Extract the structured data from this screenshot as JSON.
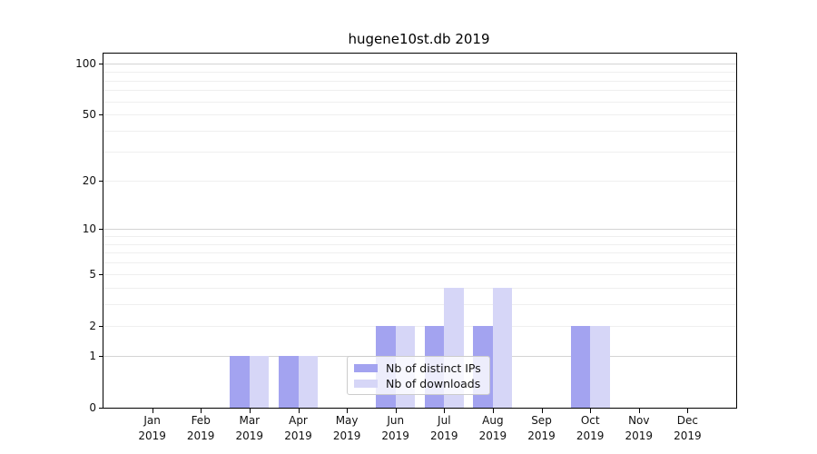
{
  "title": "hugene10st.db 2019",
  "chart_data": {
    "type": "bar",
    "title": "hugene10st.db 2019",
    "categories": [
      {
        "month": "Jan",
        "year": "2019"
      },
      {
        "month": "Feb",
        "year": "2019"
      },
      {
        "month": "Mar",
        "year": "2019"
      },
      {
        "month": "Apr",
        "year": "2019"
      },
      {
        "month": "May",
        "year": "2019"
      },
      {
        "month": "Jun",
        "year": "2019"
      },
      {
        "month": "Jul",
        "year": "2019"
      },
      {
        "month": "Aug",
        "year": "2019"
      },
      {
        "month": "Sep",
        "year": "2019"
      },
      {
        "month": "Oct",
        "year": "2019"
      },
      {
        "month": "Nov",
        "year": "2019"
      },
      {
        "month": "Dec",
        "year": "2019"
      }
    ],
    "series": [
      {
        "name": "Nb of distinct IPs",
        "color": "#a3a3f0",
        "values": [
          0,
          0,
          1,
          1,
          0,
          2,
          2,
          2,
          0,
          2,
          0,
          0
        ]
      },
      {
        "name": "Nb of downloads",
        "color": "#d6d6f7",
        "values": [
          0,
          0,
          1,
          1,
          0,
          2,
          4,
          4,
          0,
          2,
          0,
          0
        ]
      }
    ],
    "yscale": "log10(1+v)",
    "ylim": [
      0,
      115
    ],
    "yticks": [
      0,
      1,
      2,
      5,
      10,
      20,
      50,
      100
    ],
    "ytick_labels": [
      "0",
      "1",
      "2",
      "5",
      "10",
      "20",
      "50",
      "100"
    ],
    "major_grid_values": [
      1,
      10,
      100
    ],
    "minor_grid_values": [
      2,
      3,
      4,
      5,
      6,
      7,
      8,
      9,
      20,
      30,
      40,
      50,
      60,
      70,
      80,
      90
    ],
    "grid": "on",
    "legend_position": "inside lower-center",
    "xlabel": "",
    "ylabel": ""
  },
  "colors": {
    "background": "#ffffff",
    "axis": "#000000",
    "major_grid": "#d4d4d4",
    "minor_grid": "#efefef",
    "text": "#111111"
  }
}
